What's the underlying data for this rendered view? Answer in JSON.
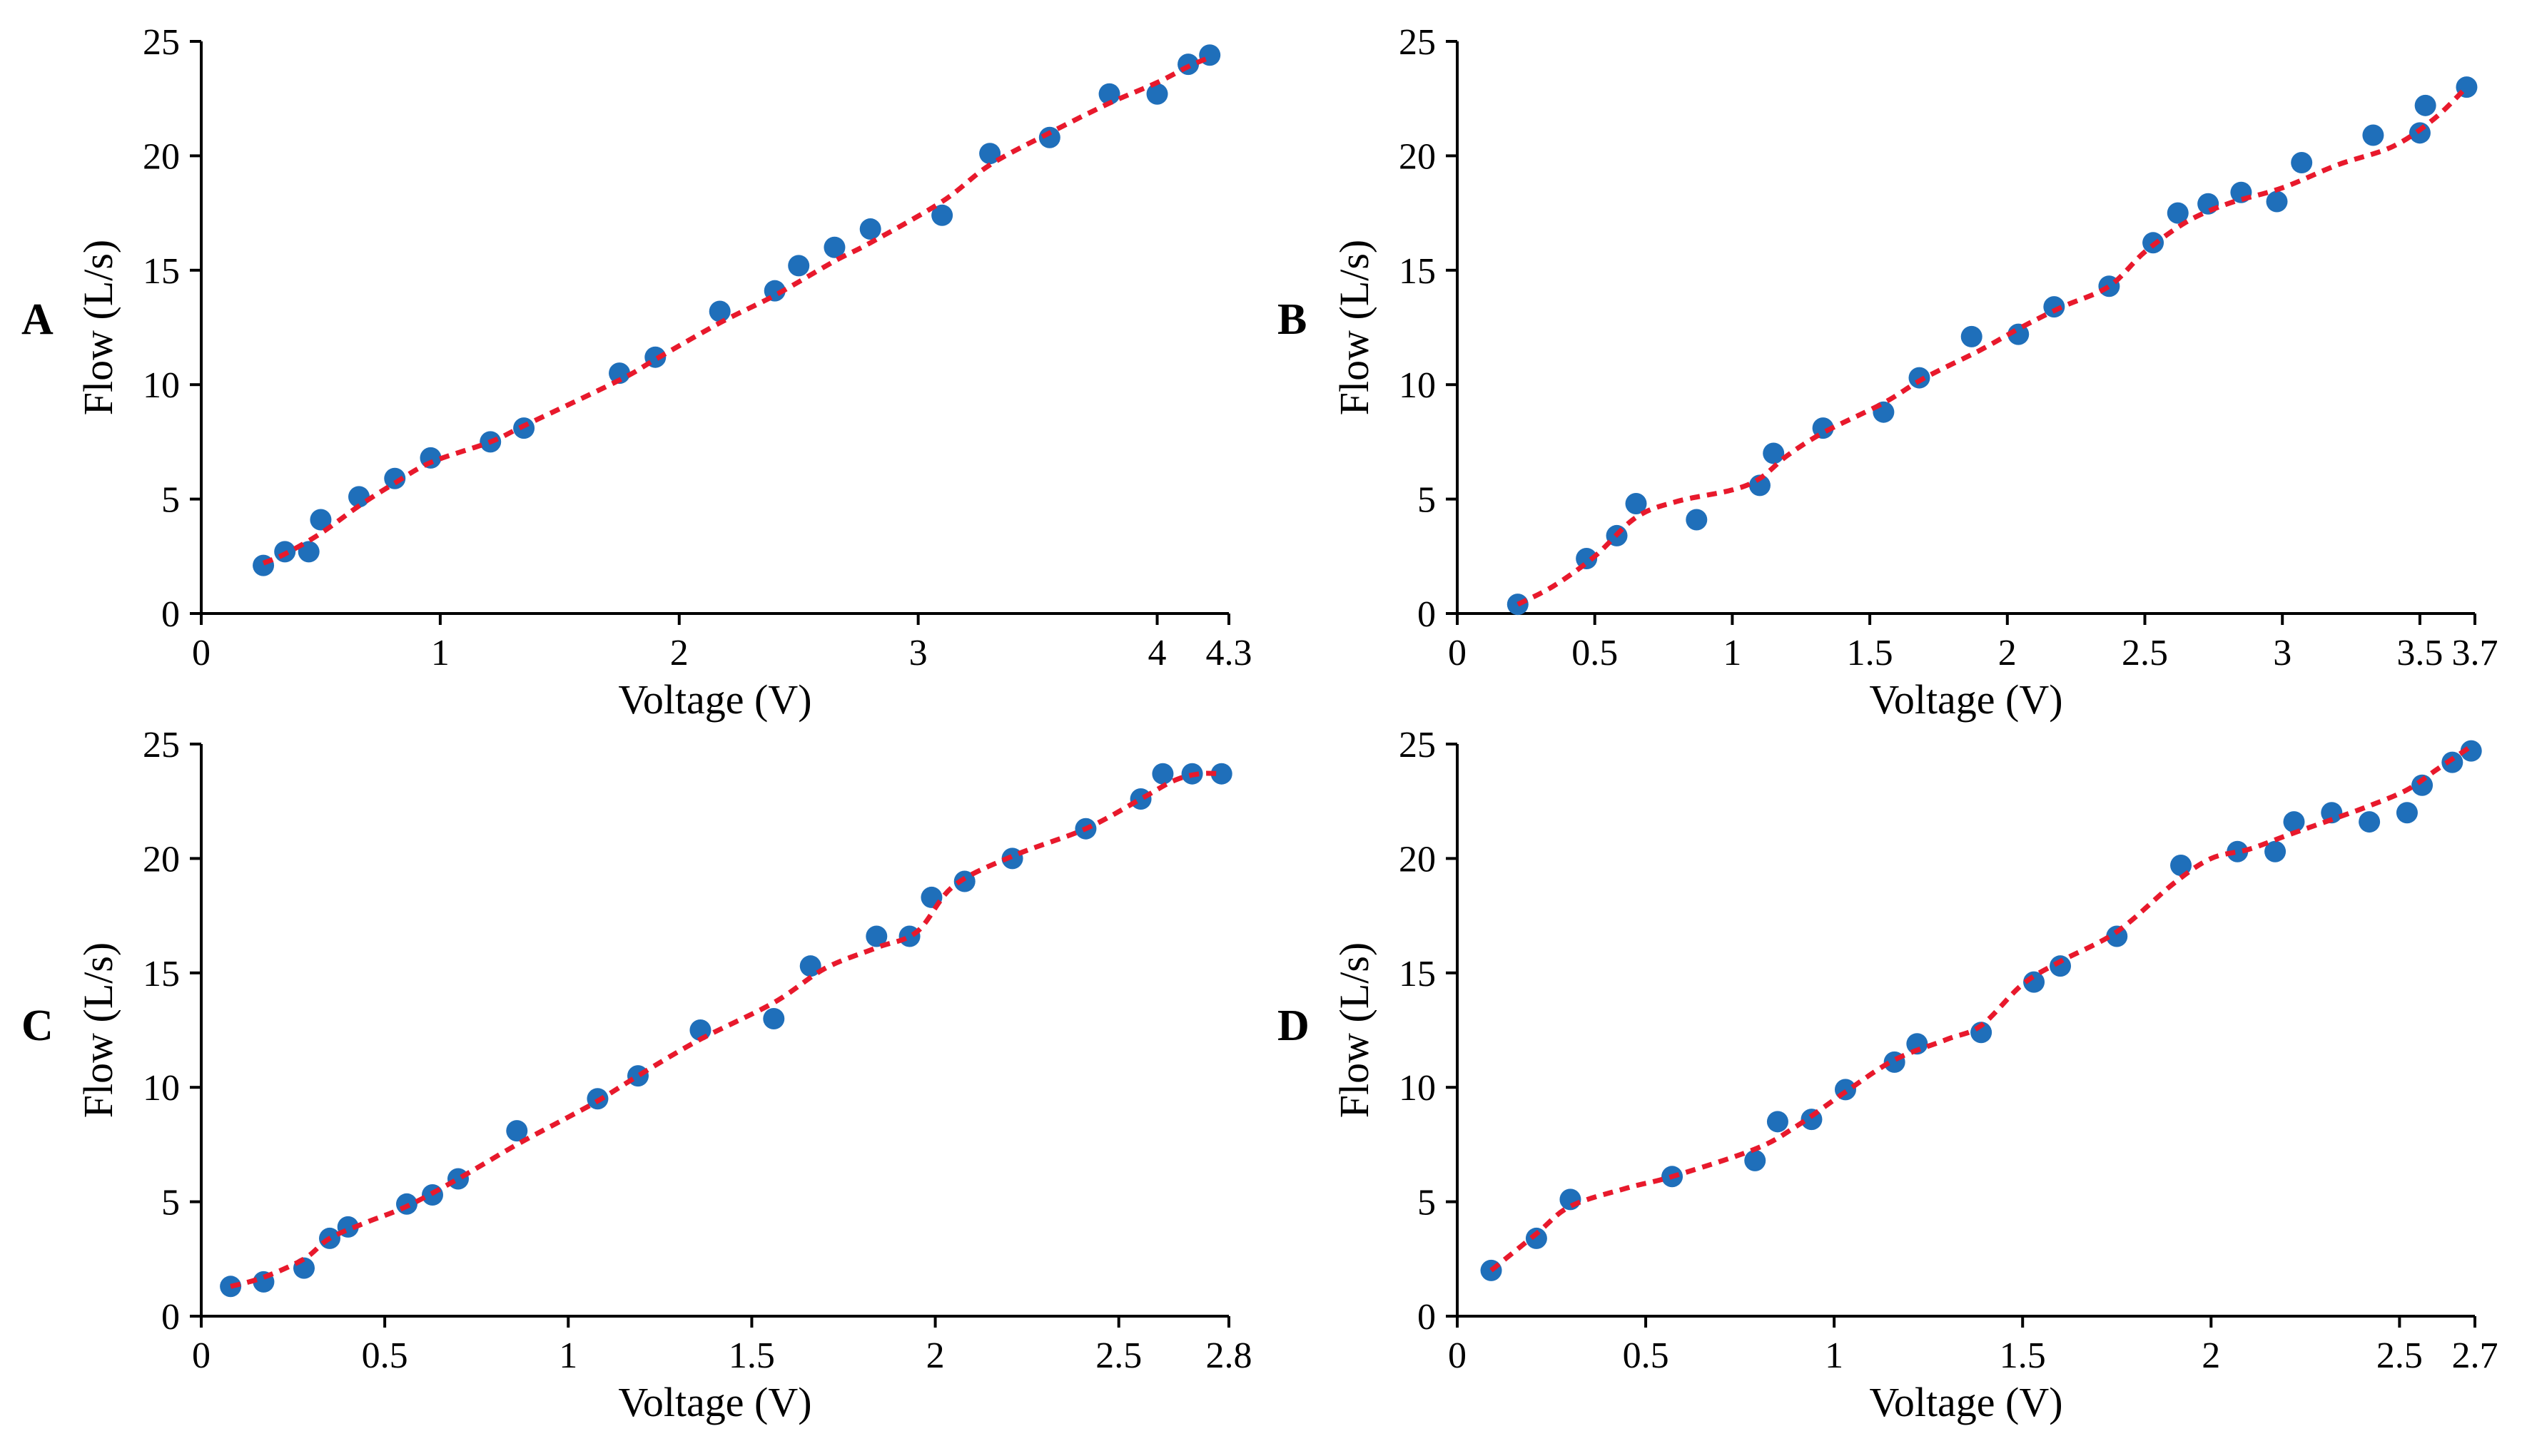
{
  "colors": {
    "points": "#1f6fba",
    "fit_line": "#e8192c",
    "axes": "#000000",
    "background": "#ffffff"
  },
  "chart_data": [
    {
      "panel": "A",
      "type": "scatter",
      "xlabel": "Voltage (V)",
      "ylabel": "Flow (L/s)",
      "xlim": [
        0,
        4.3
      ],
      "ylim": [
        0,
        25
      ],
      "xticks": [
        "0",
        "1",
        "2",
        "3",
        "4",
        "4.3"
      ],
      "yticks": [
        "0",
        "5",
        "10",
        "15",
        "20",
        "25"
      ],
      "grid": false,
      "points": {
        "x": [
          0.26,
          0.35,
          0.45,
          0.5,
          0.66,
          0.81,
          0.96,
          1.21,
          1.35,
          1.75,
          1.9,
          2.17,
          2.4,
          2.5,
          2.65,
          2.8,
          3.1,
          3.3,
          3.55,
          3.8,
          4.0,
          4.13,
          4.22
        ],
        "y": [
          2.1,
          2.7,
          2.7,
          4.1,
          5.1,
          5.9,
          6.8,
          7.5,
          8.1,
          10.5,
          11.2,
          13.2,
          14.1,
          15.2,
          16.0,
          16.8,
          17.4,
          20.1,
          20.8,
          22.7,
          22.7,
          24.0,
          24.4
        ]
      },
      "fit_line": {
        "x": [
          0.26,
          0.35,
          0.5,
          0.66,
          0.81,
          0.96,
          1.21,
          1.35,
          1.75,
          1.9,
          2.17,
          2.4,
          2.65,
          2.8,
          3.1,
          3.3,
          3.55,
          3.8,
          4.0,
          4.13,
          4.22
        ],
        "y": [
          2.2,
          2.6,
          3.5,
          4.7,
          5.7,
          6.6,
          7.5,
          8.2,
          10.2,
          11.1,
          12.7,
          13.9,
          15.4,
          16.2,
          18.0,
          19.6,
          21.0,
          22.3,
          23.2,
          23.9,
          24.3
        ]
      }
    },
    {
      "panel": "B",
      "type": "scatter",
      "xlabel": "Voltage (V)",
      "ylabel": "Flow (L/s)",
      "xlim": [
        0,
        3.7
      ],
      "ylim": [
        0,
        25
      ],
      "xticks": [
        "0",
        "0.5",
        "1",
        "1.5",
        "2",
        "2.5",
        "3",
        "3.5",
        "3.7"
      ],
      "yticks": [
        "0",
        "5",
        "10",
        "15",
        "20",
        "25"
      ],
      "grid": false,
      "points": {
        "x": [
          0.22,
          0.47,
          0.58,
          0.65,
          0.87,
          1.1,
          1.15,
          1.33,
          1.55,
          1.68,
          1.87,
          2.04,
          2.17,
          2.37,
          2.53,
          2.62,
          2.73,
          2.85,
          2.98,
          3.07,
          3.33,
          3.5,
          3.52,
          3.67
        ],
        "y": [
          0.4,
          2.4,
          3.4,
          4.8,
          4.1,
          5.6,
          7.0,
          8.1,
          8.8,
          10.3,
          12.1,
          12.2,
          13.4,
          14.3,
          16.2,
          17.5,
          17.9,
          18.4,
          18.0,
          19.7,
          20.9,
          21.0,
          22.2,
          23.0
        ]
      },
      "fit_line": {
        "x": [
          0.22,
          0.35,
          0.5,
          0.65,
          0.8,
          1.0,
          1.1,
          1.2,
          1.33,
          1.55,
          1.7,
          1.9,
          2.05,
          2.2,
          2.37,
          2.5,
          2.65,
          2.8,
          3.0,
          3.2,
          3.4,
          3.55,
          3.67
        ],
        "y": [
          0.4,
          1.2,
          2.5,
          4.2,
          4.9,
          5.4,
          5.9,
          6.9,
          7.9,
          9.2,
          10.3,
          11.5,
          12.5,
          13.4,
          14.3,
          15.8,
          17.1,
          17.9,
          18.6,
          19.6,
          20.4,
          21.6,
          23.0
        ]
      }
    },
    {
      "panel": "C",
      "type": "scatter",
      "xlabel": "Voltage (V)",
      "ylabel": "Flow (L/s)",
      "xlim": [
        0,
        2.8
      ],
      "ylim": [
        0,
        25
      ],
      "xticks": [
        "0",
        "0.5",
        "1",
        "1.5",
        "2",
        "2.5",
        "2.8"
      ],
      "yticks": [
        "0",
        "5",
        "10",
        "15",
        "20",
        "25"
      ],
      "grid": false,
      "points": {
        "x": [
          0.08,
          0.17,
          0.28,
          0.35,
          0.4,
          0.56,
          0.63,
          0.7,
          0.86,
          1.08,
          1.19,
          1.36,
          1.56,
          1.66,
          1.84,
          1.93,
          1.99,
          2.08,
          2.21,
          2.41,
          2.56,
          2.62,
          2.7,
          2.78
        ],
        "y": [
          1.3,
          1.5,
          2.1,
          3.4,
          3.9,
          4.9,
          5.3,
          6.0,
          8.1,
          9.5,
          10.5,
          12.5,
          13.0,
          15.3,
          16.6,
          16.6,
          18.3,
          19.0,
          20.0,
          21.3,
          22.6,
          23.7,
          23.7,
          23.7
        ]
      },
      "fit_line": {
        "x": [
          0.08,
          0.17,
          0.28,
          0.35,
          0.45,
          0.56,
          0.7,
          0.86,
          1.0,
          1.08,
          1.2,
          1.36,
          1.56,
          1.7,
          1.84,
          1.95,
          2.05,
          2.21,
          2.41,
          2.56,
          2.65,
          2.72,
          2.78
        ],
        "y": [
          1.3,
          1.7,
          2.5,
          3.4,
          4.1,
          4.8,
          6.0,
          7.5,
          8.7,
          9.4,
          10.6,
          12.1,
          13.7,
          15.2,
          16.1,
          16.8,
          18.8,
          20.1,
          21.3,
          22.6,
          23.4,
          23.7,
          23.7
        ]
      }
    },
    {
      "panel": "D",
      "type": "scatter",
      "xlabel": "Voltage (V)",
      "ylabel": "Flow (L/s)",
      "xlim": [
        0,
        2.7
      ],
      "ylim": [
        0,
        25
      ],
      "xticks": [
        "0",
        "0.5",
        "1",
        "1.5",
        "2",
        "2.5",
        "2.7"
      ],
      "yticks": [
        "0",
        "5",
        "10",
        "15",
        "20",
        "25"
      ],
      "grid": false,
      "points": {
        "x": [
          0.09,
          0.21,
          0.3,
          0.57,
          0.79,
          0.85,
          0.94,
          1.03,
          1.16,
          1.22,
          1.39,
          1.53,
          1.6,
          1.75,
          1.92,
          2.07,
          2.17,
          2.22,
          2.32,
          2.42,
          2.52,
          2.56,
          2.64,
          2.69
        ],
        "y": [
          2.0,
          3.4,
          5.1,
          6.1,
          6.8,
          8.5,
          8.6,
          9.9,
          11.1,
          11.9,
          12.4,
          14.6,
          15.3,
          16.6,
          19.7,
          20.3,
          20.3,
          21.6,
          22.0,
          21.6,
          22.0,
          23.2,
          24.2,
          24.7
        ]
      },
      "fit_line": {
        "x": [
          0.09,
          0.21,
          0.3,
          0.45,
          0.57,
          0.79,
          0.9,
          1.03,
          1.16,
          1.3,
          1.39,
          1.5,
          1.6,
          1.75,
          1.9,
          2.0,
          2.1,
          2.2,
          2.32,
          2.42,
          2.52,
          2.6,
          2.69
        ],
        "y": [
          2.0,
          3.6,
          4.8,
          5.6,
          6.1,
          7.3,
          8.3,
          9.8,
          11.2,
          12.1,
          12.7,
          14.5,
          15.5,
          16.8,
          18.9,
          20.0,
          20.4,
          21.0,
          21.7,
          22.3,
          23.0,
          23.9,
          24.9
        ]
      }
    }
  ]
}
